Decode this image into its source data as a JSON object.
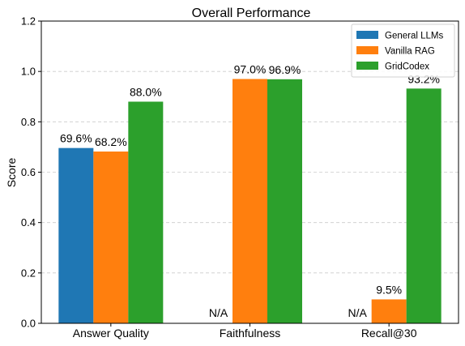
{
  "chart_data": {
    "type": "bar",
    "title": "Overall Performance",
    "xlabel": "",
    "ylabel": "Score",
    "ylim": [
      0,
      1.2
    ],
    "yticks": [
      0.0,
      0.2,
      0.4,
      0.6,
      0.8,
      1.0,
      1.2
    ],
    "ytick_labels": [
      "0.0",
      "0.2",
      "0.4",
      "0.6",
      "0.8",
      "1.0",
      "1.2"
    ],
    "grid": "y-dashed",
    "legend_position": "top-right",
    "categories": [
      "Answer Quality",
      "Faithfulness",
      "Recall@30"
    ],
    "missing_label": "N/A",
    "series": [
      {
        "name": "General LLMs",
        "color": "#1f77b4",
        "values": [
          0.696,
          null,
          null
        ],
        "labels": [
          "69.6%",
          null,
          null
        ]
      },
      {
        "name": "Vanilla RAG",
        "color": "#ff7f0e",
        "values": [
          0.682,
          0.97,
          0.095
        ],
        "labels": [
          "68.2%",
          "97.0%",
          "9.5%"
        ]
      },
      {
        "name": "GridCodex",
        "color": "#2ca02c",
        "values": [
          0.88,
          0.969,
          0.932
        ],
        "labels": [
          "88.0%",
          "96.9%",
          "93.2%"
        ]
      }
    ]
  }
}
